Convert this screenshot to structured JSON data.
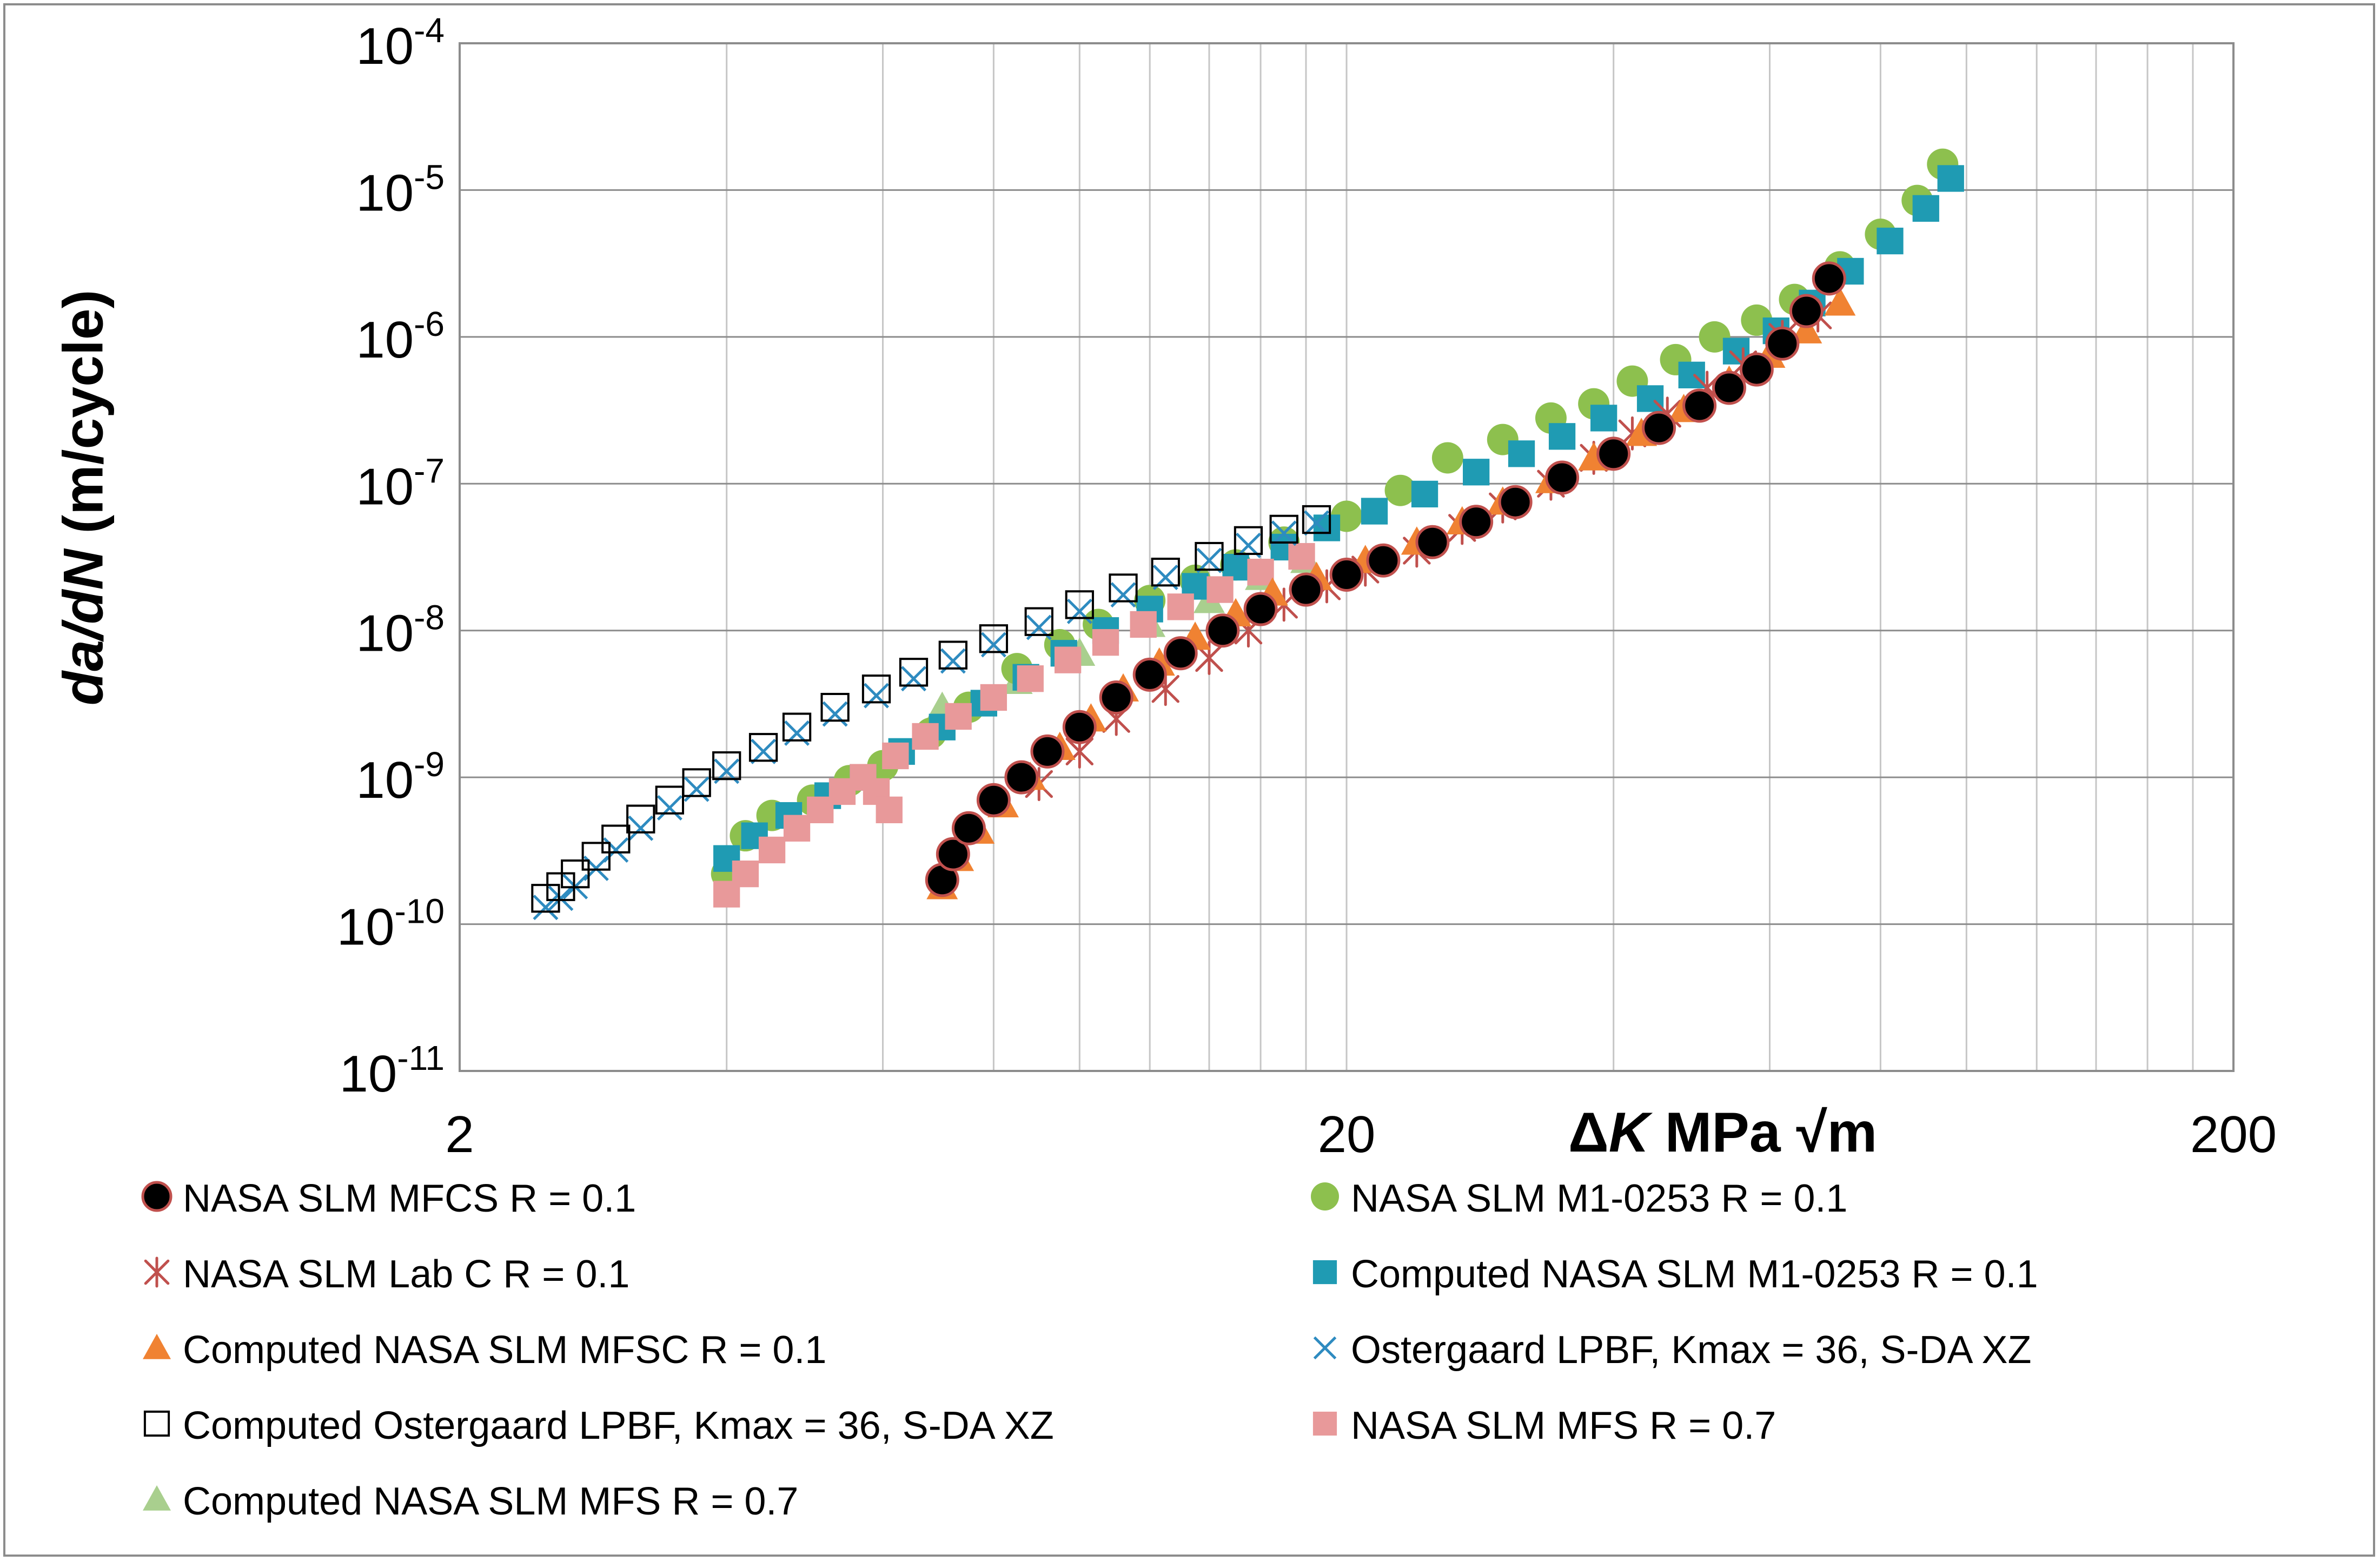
{
  "chart_data": {
    "type": "scatter",
    "x_scale": "log",
    "y_scale": "log",
    "xlabel": {
      "delta": "Δ",
      "var": "K",
      "units": "MPa √m"
    },
    "ylabel": {
      "var": "da/dN",
      "units": "(m/cycle)"
    },
    "xlim": [
      2,
      200
    ],
    "ylim": [
      1e-11,
      0.0001
    ],
    "x_tick_labels": [
      {
        "value": 2,
        "label": "2"
      },
      {
        "value": 20,
        "label": "20"
      },
      {
        "value": 200,
        "label": "200"
      }
    ],
    "y_tick_labels": [
      {
        "exp": -4,
        "base": "10",
        "sup": "-4"
      },
      {
        "exp": -5,
        "base": "10",
        "sup": "-5"
      },
      {
        "exp": -6,
        "base": "10",
        "sup": "-6"
      },
      {
        "exp": -7,
        "base": "10",
        "sup": "-7"
      },
      {
        "exp": -8,
        "base": "10",
        "sup": "-8"
      },
      {
        "exp": -9,
        "base": "10",
        "sup": "-9"
      },
      {
        "exp": -10,
        "base": "10",
        "sup": "-10"
      },
      {
        "exp": -11,
        "base": "10",
        "sup": "-11"
      }
    ],
    "grid": true,
    "series": [
      {
        "name": "NASA SLM MFCS R = 0.1",
        "marker": "circle-black-red-edge",
        "color": "#000000",
        "edge": "#c0504d",
        "points": [
          [
            7.0,
            2e-10
          ],
          [
            7.2,
            3e-10
          ],
          [
            7.5,
            4.5e-10
          ],
          [
            8.0,
            7e-10
          ],
          [
            8.6,
            1e-09
          ],
          [
            9.2,
            1.5e-09
          ],
          [
            10.0,
            2.2e-09
          ],
          [
            11.0,
            3.5e-09
          ],
          [
            12.0,
            5e-09
          ],
          [
            13.0,
            7e-09
          ],
          [
            14.5,
            1e-08
          ],
          [
            16.0,
            1.4e-08
          ],
          [
            18.0,
            1.9e-08
          ],
          [
            20.0,
            2.4e-08
          ],
          [
            22.0,
            3e-08
          ],
          [
            25.0,
            4e-08
          ],
          [
            28.0,
            5.5e-08
          ],
          [
            31.0,
            7.5e-08
          ],
          [
            35.0,
            1.1e-07
          ],
          [
            40.0,
            1.6e-07
          ],
          [
            45.0,
            2.4e-07
          ],
          [
            50.0,
            3.4e-07
          ],
          [
            54.0,
            4.5e-07
          ],
          [
            58.0,
            6e-07
          ],
          [
            62.0,
            9e-07
          ],
          [
            66.0,
            1.5e-06
          ],
          [
            70.0,
            2.5e-06
          ]
        ]
      },
      {
        "name": "NASA SLM M1-0253 R = 0.1",
        "marker": "circle-green",
        "color": "#8dc04e",
        "points": [
          [
            4.0,
            2.2e-10
          ],
          [
            4.2,
            4e-10
          ],
          [
            4.5,
            5.5e-10
          ],
          [
            5.0,
            7e-10
          ],
          [
            5.5,
            9.5e-10
          ],
          [
            6.0,
            1.2e-09
          ],
          [
            6.8,
            2e-09
          ],
          [
            7.5,
            3e-09
          ],
          [
            8.5,
            5.5e-09
          ],
          [
            9.5,
            8e-09
          ],
          [
            10.5,
            1.1e-08
          ],
          [
            12.0,
            1.6e-08
          ],
          [
            13.5,
            2.2e-08
          ],
          [
            15.0,
            2.8e-08
          ],
          [
            17.0,
            4e-08
          ],
          [
            20.0,
            6e-08
          ],
          [
            23.0,
            9e-08
          ],
          [
            26.0,
            1.5e-07
          ],
          [
            30.0,
            2e-07
          ],
          [
            34.0,
            2.8e-07
          ],
          [
            38.0,
            3.5e-07
          ],
          [
            42.0,
            5e-07
          ],
          [
            47.0,
            7e-07
          ],
          [
            52.0,
            1e-06
          ],
          [
            58.0,
            1.3e-06
          ],
          [
            64.0,
            1.8e-06
          ],
          [
            72.0,
            3e-06
          ],
          [
            80.0,
            5e-06
          ],
          [
            88.0,
            8.5e-06
          ],
          [
            94.0,
            1.5e-05
          ]
        ]
      },
      {
        "name": "NASA SLM Lab C R = 0.1",
        "marker": "asterisk",
        "color": "#c0504d",
        "points": [
          [
            9.0,
            9e-10
          ],
          [
            10.0,
            1.5e-09
          ],
          [
            11.0,
            2.5e-09
          ],
          [
            12.5,
            4e-09
          ],
          [
            14.0,
            6.5e-09
          ],
          [
            15.5,
            1e-08
          ],
          [
            17.0,
            1.5e-08
          ],
          [
            19.0,
            2e-08
          ],
          [
            21.0,
            2.6e-08
          ],
          [
            24.0,
            3.5e-08
          ],
          [
            27.0,
            5e-08
          ],
          [
            30.0,
            7e-08
          ],
          [
            34.0,
            1e-07
          ],
          [
            38.0,
            1.5e-07
          ],
          [
            42.0,
            2.2e-07
          ],
          [
            46.0,
            3e-07
          ],
          [
            51.0,
            4.5e-07
          ],
          [
            56.0,
            6.5e-07
          ],
          [
            62.0,
            1e-06
          ],
          [
            68.0,
            1.4e-06
          ]
        ]
      },
      {
        "name": "Computed NASA SLM M1-0253 R = 0.1",
        "marker": "square-teal",
        "color": "#1f9bb3",
        "points": [
          [
            4.0,
            2.8e-10
          ],
          [
            4.3,
            4e-10
          ],
          [
            4.7,
            5.5e-10
          ],
          [
            5.2,
            7.5e-10
          ],
          [
            5.7,
            1e-09
          ],
          [
            6.3,
            1.5e-09
          ],
          [
            7.0,
            2.2e-09
          ],
          [
            7.8,
            3.2e-09
          ],
          [
            8.7,
            4.8e-09
          ],
          [
            9.6,
            7e-09
          ],
          [
            10.7,
            1e-08
          ],
          [
            12.0,
            1.4e-08
          ],
          [
            13.5,
            2e-08
          ],
          [
            15.0,
            2.7e-08
          ],
          [
            17.0,
            3.7e-08
          ],
          [
            19.0,
            5e-08
          ],
          [
            21.5,
            6.5e-08
          ],
          [
            24.5,
            8.5e-08
          ],
          [
            28.0,
            1.2e-07
          ],
          [
            31.5,
            1.6e-07
          ],
          [
            35.0,
            2.1e-07
          ],
          [
            39.0,
            2.8e-07
          ],
          [
            44.0,
            3.8e-07
          ],
          [
            49.0,
            5.5e-07
          ],
          [
            55.0,
            8e-07
          ],
          [
            61.0,
            1.1e-06
          ],
          [
            67.0,
            1.7e-06
          ],
          [
            74.0,
            2.8e-06
          ],
          [
            82.0,
            4.5e-06
          ],
          [
            90.0,
            7.5e-06
          ],
          [
            96.0,
            1.2e-05
          ]
        ]
      },
      {
        "name": "Computed NASA SLM MFSC R = 0.1",
        "marker": "triangle-orange",
        "color": "#f08232",
        "points": [
          [
            7.0,
            1.8e-10
          ],
          [
            7.3,
            2.8e-10
          ],
          [
            7.7,
            4.3e-10
          ],
          [
            8.2,
            6.5e-10
          ],
          [
            8.8,
            1e-09
          ],
          [
            9.5,
            1.6e-09
          ],
          [
            10.3,
            2.5e-09
          ],
          [
            11.2,
            4e-09
          ],
          [
            12.3,
            6e-09
          ],
          [
            13.5,
            9e-09
          ],
          [
            15.0,
            1.3e-08
          ],
          [
            16.5,
            1.8e-08
          ],
          [
            18.5,
            2.3e-08
          ],
          [
            21.0,
            3e-08
          ],
          [
            24.0,
            4e-08
          ],
          [
            27.0,
            5.5e-08
          ],
          [
            30.0,
            7.5e-08
          ],
          [
            34.0,
            1.05e-07
          ],
          [
            38.0,
            1.5e-07
          ],
          [
            43.0,
            2.2e-07
          ],
          [
            48.0,
            3.2e-07
          ],
          [
            54.0,
            5e-07
          ],
          [
            60.0,
            7.5e-07
          ],
          [
            66.0,
            1.1e-06
          ],
          [
            72.0,
            1.7e-06
          ]
        ]
      },
      {
        "name": "Ostergaard LPBF, Kmax = 36, S-DA XZ",
        "marker": "x-blue",
        "color": "#2e8bc0",
        "points": [
          [
            2.5,
            1.3e-10
          ],
          [
            2.6,
            1.5e-10
          ],
          [
            2.7,
            1.8e-10
          ],
          [
            2.85,
            2.4e-10
          ],
          [
            3.0,
            3.2e-10
          ],
          [
            3.2,
            4.5e-10
          ],
          [
            3.45,
            6.2e-10
          ],
          [
            3.7,
            8.3e-10
          ],
          [
            4.0,
            1.1e-09
          ],
          [
            4.4,
            1.5e-09
          ],
          [
            4.8,
            2e-09
          ],
          [
            5.3,
            2.7e-09
          ],
          [
            5.9,
            3.6e-09
          ],
          [
            6.5,
            4.7e-09
          ],
          [
            7.2,
            6.2e-09
          ],
          [
            8.0,
            8e-09
          ],
          [
            9.0,
            1.05e-08
          ],
          [
            10.0,
            1.35e-08
          ],
          [
            11.2,
            1.75e-08
          ],
          [
            12.5,
            2.3e-08
          ],
          [
            14.0,
            3e-08
          ],
          [
            15.5,
            3.8e-08
          ],
          [
            17.0,
            4.6e-08
          ],
          [
            18.5,
            5.4e-08
          ]
        ]
      },
      {
        "name": "Computed Ostergaard LPBF, Kmax = 36, S-DA XZ",
        "marker": "square-open",
        "color": "#000000",
        "points": [
          [
            2.5,
            1.5e-10
          ],
          [
            2.6,
            1.8e-10
          ],
          [
            2.7,
            2.2e-10
          ],
          [
            2.85,
            2.9e-10
          ],
          [
            3.0,
            3.8e-10
          ],
          [
            3.2,
            5.2e-10
          ],
          [
            3.45,
            7e-10
          ],
          [
            3.7,
            9.2e-10
          ],
          [
            4.0,
            1.2e-09
          ],
          [
            4.4,
            1.6e-09
          ],
          [
            4.8,
            2.2e-09
          ],
          [
            5.3,
            3e-09
          ],
          [
            5.9,
            4e-09
          ],
          [
            6.5,
            5.2e-09
          ],
          [
            7.2,
            6.8e-09
          ],
          [
            8.0,
            8.8e-09
          ],
          [
            9.0,
            1.15e-08
          ],
          [
            10.0,
            1.5e-08
          ],
          [
            11.2,
            1.95e-08
          ],
          [
            12.5,
            2.5e-08
          ],
          [
            14.0,
            3.2e-08
          ],
          [
            15.5,
            4.1e-08
          ],
          [
            17.0,
            4.9e-08
          ],
          [
            18.5,
            5.7e-08
          ]
        ]
      },
      {
        "name": "NASA SLM MFS R = 0.7",
        "marker": "square-pink",
        "color": "#e8999a",
        "points": [
          [
            4.0,
            1.6e-10
          ],
          [
            4.2,
            2.2e-10
          ],
          [
            4.5,
            3.2e-10
          ],
          [
            4.8,
            4.5e-10
          ],
          [
            5.1,
            6e-10
          ],
          [
            5.4,
            8e-10
          ],
          [
            5.7,
            1e-09
          ],
          [
            5.9,
            8e-10
          ],
          [
            6.1,
            6e-10
          ],
          [
            6.2,
            1.4e-09
          ],
          [
            6.7,
            1.9e-09
          ],
          [
            7.3,
            2.6e-09
          ],
          [
            8.0,
            3.5e-09
          ],
          [
            8.8,
            4.7e-09
          ],
          [
            9.7,
            6.3e-09
          ],
          [
            10.7,
            8.3e-09
          ],
          [
            11.8,
            1.1e-08
          ],
          [
            13.0,
            1.45e-08
          ],
          [
            14.4,
            1.9e-08
          ],
          [
            16.0,
            2.5e-08
          ],
          [
            17.8,
            3.2e-08
          ]
        ]
      },
      {
        "name": "Computed NASA SLM MFS R = 0.7",
        "marker": "triangle-lightgreen",
        "color": "#a9cf8e",
        "points": [
          [
            7.0,
            3e-09
          ],
          [
            8.5,
            4.5e-09
          ],
          [
            10.0,
            7e-09
          ],
          [
            12.0,
            1.1e-08
          ],
          [
            14.0,
            1.6e-08
          ],
          [
            16.0,
            2.3e-08
          ],
          [
            18.0,
            3e-08
          ]
        ]
      }
    ]
  }
}
